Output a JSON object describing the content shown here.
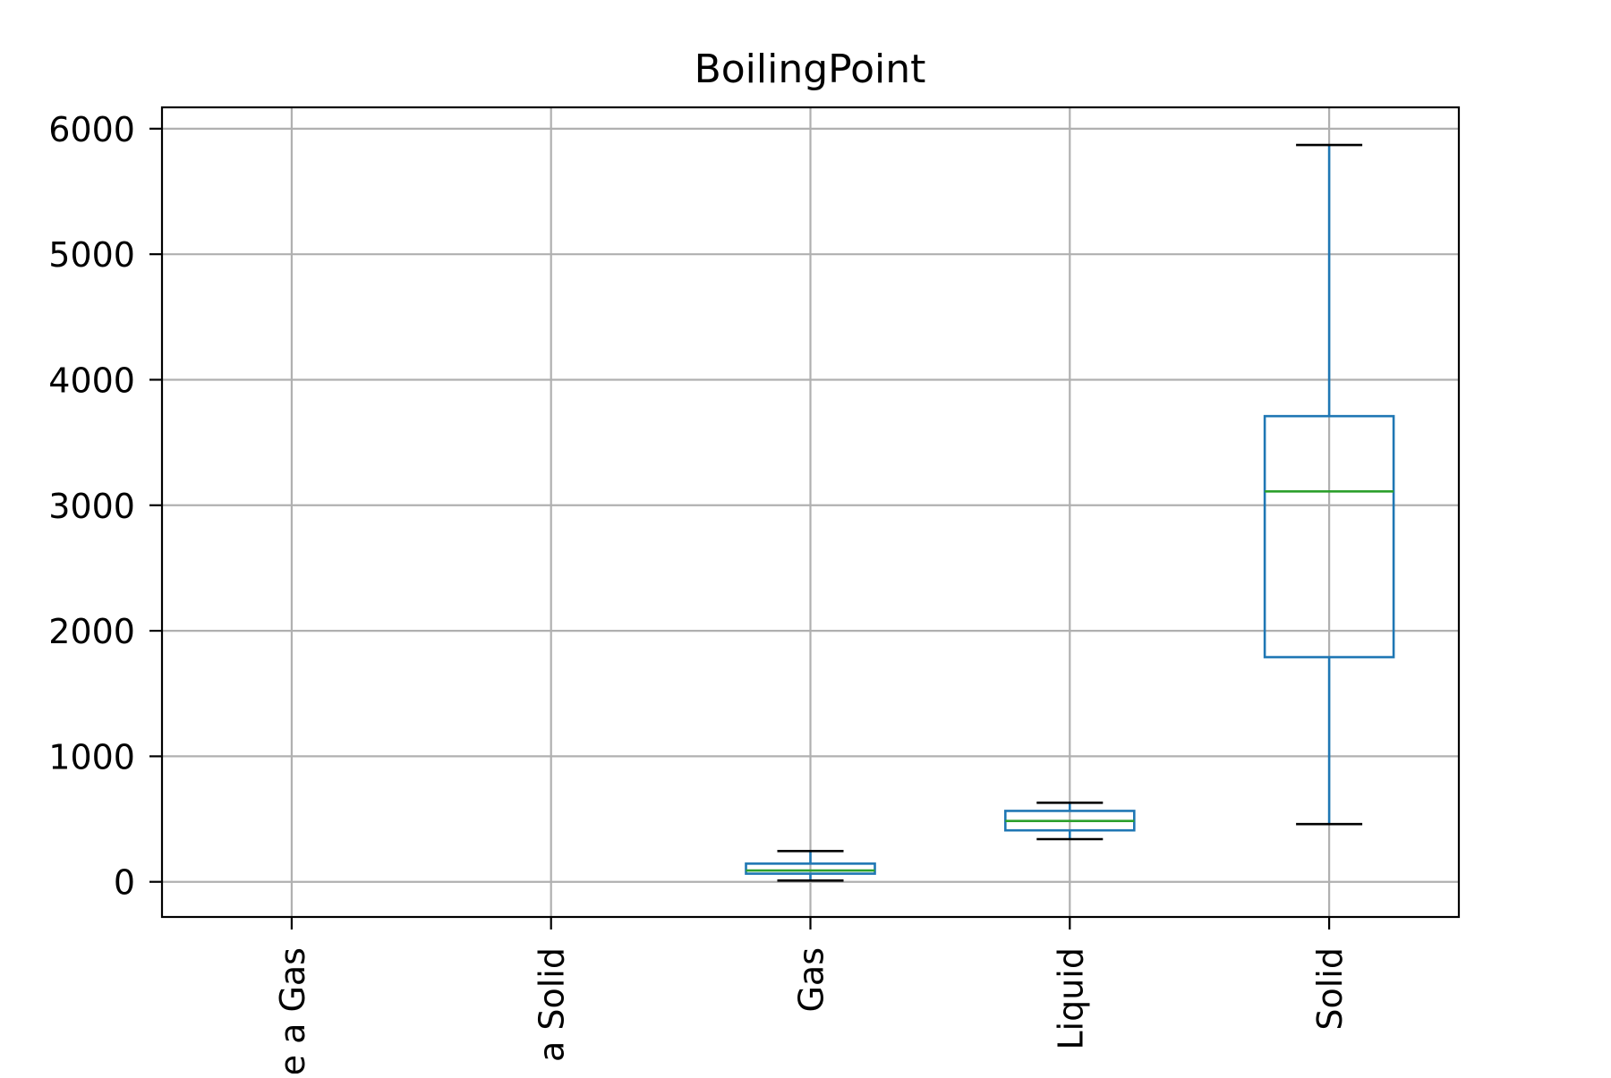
{
  "chart_data": {
    "type": "box",
    "title": "BoilingPoint",
    "xlabel": "",
    "ylabel": "",
    "ylim": [
      -280,
      6170
    ],
    "yticks": [
      0,
      1000,
      2000,
      3000,
      4000,
      5000,
      6000
    ],
    "ytick_labels": [
      "0",
      "1000",
      "2000",
      "3000",
      "4000",
      "5000",
      "6000"
    ],
    "grid": true,
    "categories": [
      "Artificially Prepared as a Gas",
      "Artificially Prepared as a Solid",
      "Gas",
      "Liquid",
      "Solid"
    ],
    "category_labels_visible": [
      "e a Gas",
      "a Solid",
      "Gas",
      "Liquid",
      "Solid"
    ],
    "boxes": [
      null,
      null,
      {
        "whislo": 10,
        "q1": 65,
        "med": 90,
        "q3": 145,
        "whishi": 245
      },
      {
        "whislo": 340,
        "q1": 410,
        "med": 485,
        "q3": 565,
        "whishi": 630
      },
      {
        "whislo": 460,
        "q1": 1790,
        "med": 3110,
        "q3": 3710,
        "whishi": 5870
      }
    ],
    "colors": {
      "box": "#1f77b4",
      "median": "#2ca02c",
      "whisker_cap": "#000000",
      "grid": "#b0b0b0",
      "axes": "#000000"
    }
  }
}
